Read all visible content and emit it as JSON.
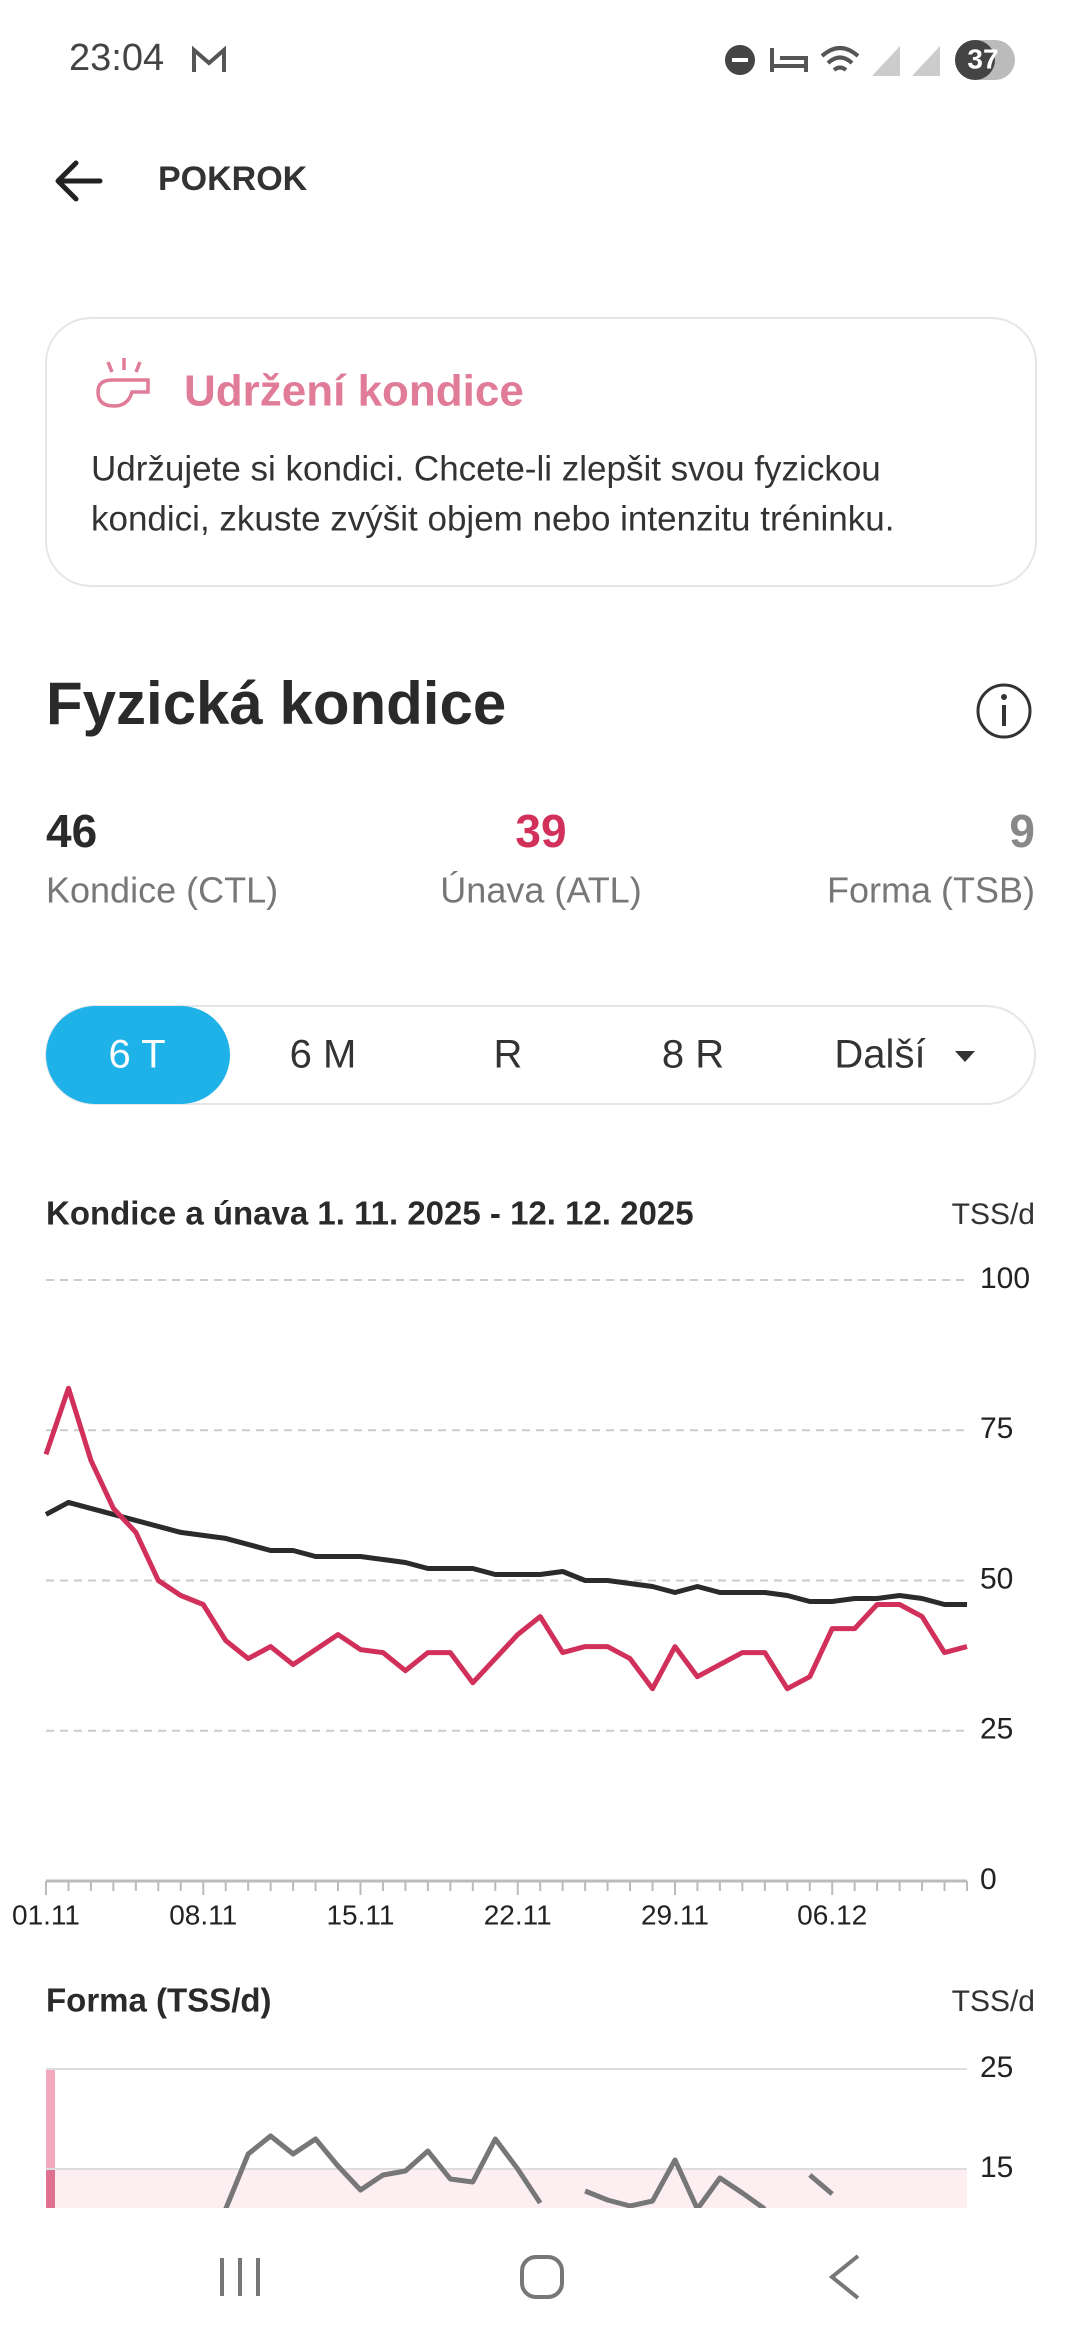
{
  "status_bar": {
    "time": "23:04",
    "battery": "37"
  },
  "header": {
    "title": "POKROK"
  },
  "card": {
    "title": "Udržení kondice",
    "lines": [
      "Udržujete si kondici. Chcete-li zlepšit svou fyzickou",
      "kondici, zkuste zvýšit objem nebo intenzitu tréninku."
    ]
  },
  "section": {
    "title": "Fyzická kondice"
  },
  "stats": [
    {
      "value": 46,
      "label": "Kondice (CTL)",
      "color": "#2a2a2a"
    },
    {
      "value": 39,
      "label": "Únava (ATL)",
      "color": "#d1305a"
    },
    {
      "value": 9,
      "label": "Forma (TSB)",
      "color": "#888888"
    }
  ],
  "tabs": [
    "6 T",
    "6 M",
    "R",
    "8 R",
    "Další"
  ],
  "selected_tab": 0,
  "chart_data": [
    {
      "type": "line",
      "title": "Kondice a únava 1. 11. 2025 - 12. 12. 2025",
      "y_label": "TSS/d",
      "categories": [
        "01.11",
        null,
        null,
        null,
        null,
        null,
        null,
        "08.11",
        null,
        null,
        null,
        null,
        null,
        null,
        "15.11",
        null,
        null,
        null,
        null,
        null,
        null,
        "22.11",
        null,
        null,
        null,
        null,
        null,
        null,
        "29.11",
        null,
        null,
        null,
        null,
        null,
        null,
        "06.12",
        null,
        null,
        null,
        null,
        null,
        null
      ],
      "series": [
        {
          "color": "#2b2b2b",
          "values": [
            61,
            63,
            62,
            61,
            60,
            59,
            58,
            57.5,
            57,
            56,
            55,
            55,
            54,
            54,
            54,
            53.5,
            53,
            52,
            52,
            52,
            51,
            51,
            51,
            51.5,
            50,
            50,
            49.5,
            49,
            48,
            49,
            48,
            48,
            48,
            47.5,
            46.5,
            46.5,
            47,
            47,
            47.5,
            47,
            46,
            46
          ]
        },
        {
          "color": "#d1305a",
          "values": [
            71,
            82,
            70,
            62,
            58,
            50,
            47.5,
            46,
            40,
            37,
            39,
            36,
            38.5,
            41,
            38.5,
            38,
            35,
            38,
            38,
            33,
            37,
            41,
            44,
            38,
            39,
            39,
            37,
            32,
            39,
            34,
            36,
            38,
            38,
            32,
            34,
            42,
            42,
            46,
            46,
            44,
            38,
            39
          ]
        }
      ],
      "ylim": [
        0,
        100
      ],
      "yticks": [
        0,
        25,
        50,
        75,
        100
      ],
      "grid": true
    },
    {
      "type": "line",
      "title": "Forma (TSS/d)",
      "y_label": "TSS/d",
      "series": [
        {
          "color": "#777777",
          "values": [
            null,
            null,
            null,
            null,
            null,
            null,
            null,
            null,
            11,
            16.5,
            18.3,
            16.5,
            18,
            15.3,
            12.9,
            14.4,
            14.8,
            16.8,
            14,
            13.7,
            18,
            15,
            11.6,
            null,
            12.8,
            11.9,
            11.3,
            11.8,
            15.9,
            11,
            14.1,
            12.6,
            11,
            null,
            14.4,
            12.5,
            null,
            null,
            null,
            null,
            null,
            null
          ]
        }
      ],
      "ylim": [
        11,
        25
      ],
      "yticks": [
        15,
        25
      ],
      "grid": true
    }
  ]
}
